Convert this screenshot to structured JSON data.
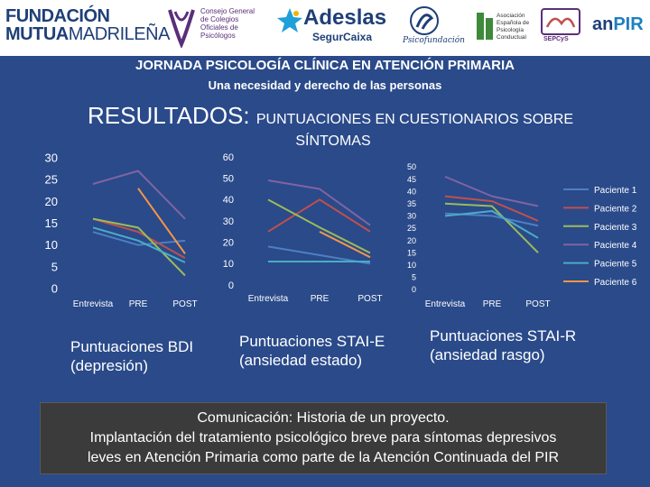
{
  "logos": {
    "fundacion_line1": "FUNDACIÓN",
    "fundacion_line2_bold": "MUTUA",
    "fundacion_line2_rest": "MADRILEÑA",
    "cgcop": "Consejo General de Colegios Oficiales de Psicólogos",
    "adeslas": "Adeslas",
    "segurcaixa": "SegurCaixa",
    "psicofundacion": "Psicofundación",
    "aepc": "Asociación Española de Psicología Conductual",
    "sepcys": "SEPCyS",
    "anpir_a": "an",
    "anpir_b": "PIR"
  },
  "header": {
    "title": "JORNADA PSICOLOGÍA CLÍNICA EN ATENCIÓN PRIMARIA",
    "subtitle": "Una necesidad y derecho de las personas",
    "results_big": "RESULTADOS:",
    "results_small": "PUNTUACIONES EN CUESTIONARIOS SOBRE",
    "results_line2": "SÍNTOMAS"
  },
  "captions": {
    "bdi": "Puntuaciones BDI (depresión)",
    "stai_e": "Puntuaciones STAI-E (ansiedad estado)",
    "stai_r": "Puntuaciones STAI-R (ansiedad rasgo)"
  },
  "communication": {
    "line1": "Comunicación: Historia de un proyecto.",
    "line2": "Implantación del tratamiento psicológico breve para síntomas depresivos",
    "line3": "leves en Atención Primaria como parte de la Atención Continuada del PIR"
  },
  "colors": {
    "p1": "#4e7fc4",
    "p2": "#c0504d",
    "p3": "#9bbb59",
    "p4": "#8064a2",
    "p5": "#4bacc6",
    "p6": "#f79646",
    "axis": "#b8b8b8"
  },
  "chart_data": [
    {
      "type": "line",
      "title": "Puntuaciones BDI (depresión)",
      "categories": [
        "Entrevista",
        "PRE",
        "POST"
      ],
      "ylim": [
        0,
        30
      ],
      "yticks": [
        0,
        5,
        10,
        15,
        20,
        25,
        30
      ],
      "series": [
        {
          "name": "Paciente 1",
          "values": [
            13,
            10,
            11
          ]
        },
        {
          "name": "Paciente 2",
          "values": [
            16,
            13,
            7
          ]
        },
        {
          "name": "Paciente 3",
          "values": [
            16,
            14,
            3
          ]
        },
        {
          "name": "Paciente 4",
          "values": [
            24,
            27,
            16
          ]
        },
        {
          "name": "Paciente 5",
          "values": [
            14,
            11,
            6
          ]
        },
        {
          "name": "Paciente 6",
          "values": [
            null,
            23,
            8
          ]
        }
      ]
    },
    {
      "type": "line",
      "title": "Puntuaciones STAI-E (ansiedad estado)",
      "categories": [
        "Entrevista",
        "PRE",
        "POST"
      ],
      "ylim": [
        0,
        60
      ],
      "yticks": [
        0,
        10,
        20,
        30,
        40,
        50,
        60
      ],
      "series": [
        {
          "name": "Paciente 1",
          "values": [
            18,
            14,
            10
          ]
        },
        {
          "name": "Paciente 2",
          "values": [
            25,
            40,
            25
          ]
        },
        {
          "name": "Paciente 3",
          "values": [
            40,
            27,
            15
          ]
        },
        {
          "name": "Paciente 4",
          "values": [
            49,
            45,
            28
          ]
        },
        {
          "name": "Paciente 5",
          "values": [
            11,
            11,
            11
          ]
        },
        {
          "name": "Paciente 6",
          "values": [
            null,
            25,
            13
          ]
        }
      ]
    },
    {
      "type": "line",
      "title": "Puntuaciones STAI-R (ansiedad rasgo)",
      "categories": [
        "Entrevista",
        "PRE",
        "POST"
      ],
      "ylim": [
        0,
        50
      ],
      "yticks": [
        0,
        5,
        10,
        15,
        20,
        25,
        30,
        35,
        40,
        45,
        50
      ],
      "legend": "right",
      "series": [
        {
          "name": "Paciente 1",
          "values": [
            31,
            30,
            26
          ]
        },
        {
          "name": "Paciente 2",
          "values": [
            38,
            36,
            28
          ]
        },
        {
          "name": "Paciente 3",
          "values": [
            35,
            34,
            15
          ]
        },
        {
          "name": "Paciente 4",
          "values": [
            46,
            38,
            34
          ]
        },
        {
          "name": "Paciente 5",
          "values": [
            30,
            32,
            21
          ]
        },
        {
          "name": "Paciente 6",
          "values": [
            null,
            null,
            null
          ]
        }
      ]
    }
  ]
}
